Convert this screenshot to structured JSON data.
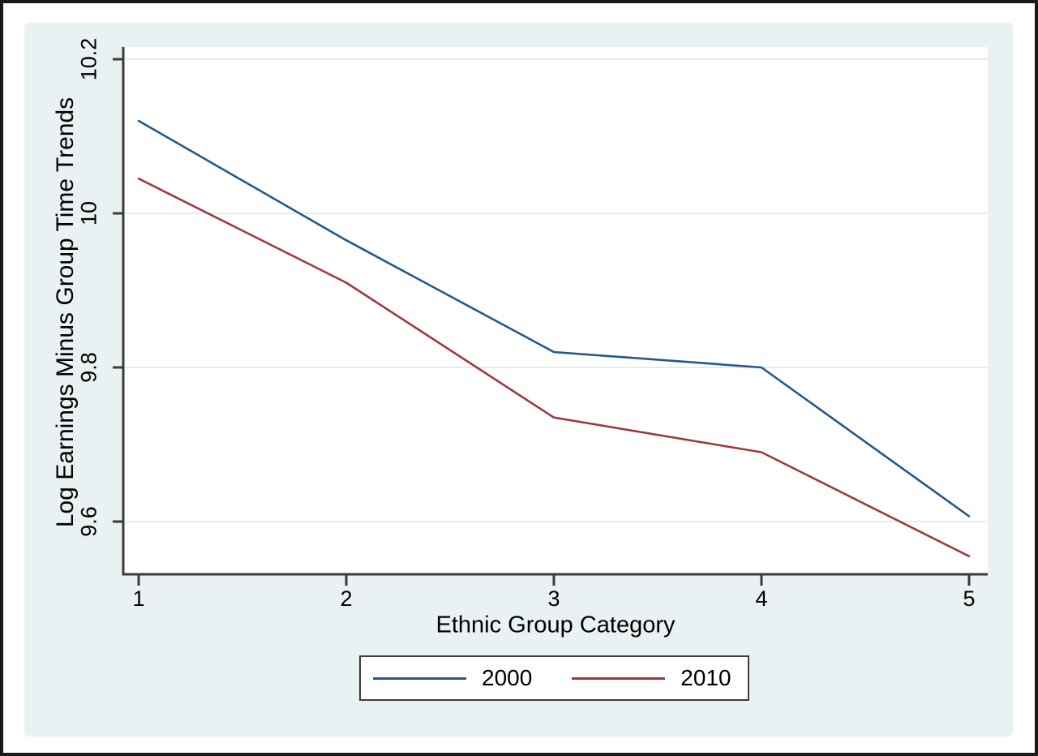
{
  "chart_data": {
    "type": "line",
    "title": "",
    "xlabel": "Ethnic Group Category",
    "ylabel": "Log Earnings Minus Group Time Trends",
    "x": [
      1,
      2,
      3,
      4,
      5
    ],
    "xtick_labels": [
      "1",
      "2",
      "3",
      "4",
      "5"
    ],
    "ytick_values": [
      10.2,
      10,
      9.8,
      9.6
    ],
    "ytick_labels": [
      "10.2",
      "10",
      "9.8",
      "9.6"
    ],
    "xlim": [
      0.93,
      5.09
    ],
    "ylim": [
      9.53,
      10.22
    ],
    "grid": true,
    "legend_position": "bottom-center",
    "series": [
      {
        "name": "2000",
        "color": "#26588a",
        "values": [
          10.12,
          9.965,
          9.82,
          9.8,
          9.607
        ]
      },
      {
        "name": "2010",
        "color": "#9d3a40",
        "values": [
          10.045,
          9.91,
          9.735,
          9.69,
          9.555
        ]
      }
    ]
  },
  "theme": {
    "frame_border_color": "#1a1a1a",
    "figure_background": "#eaf1f3",
    "plot_background": "#ffffff",
    "gridline_color": "#e3edf0",
    "axis_color": "#3a3a3a",
    "text_color": "#000000",
    "legend_border_color": "#3c3c3c",
    "legend_background": "#ffffff"
  }
}
